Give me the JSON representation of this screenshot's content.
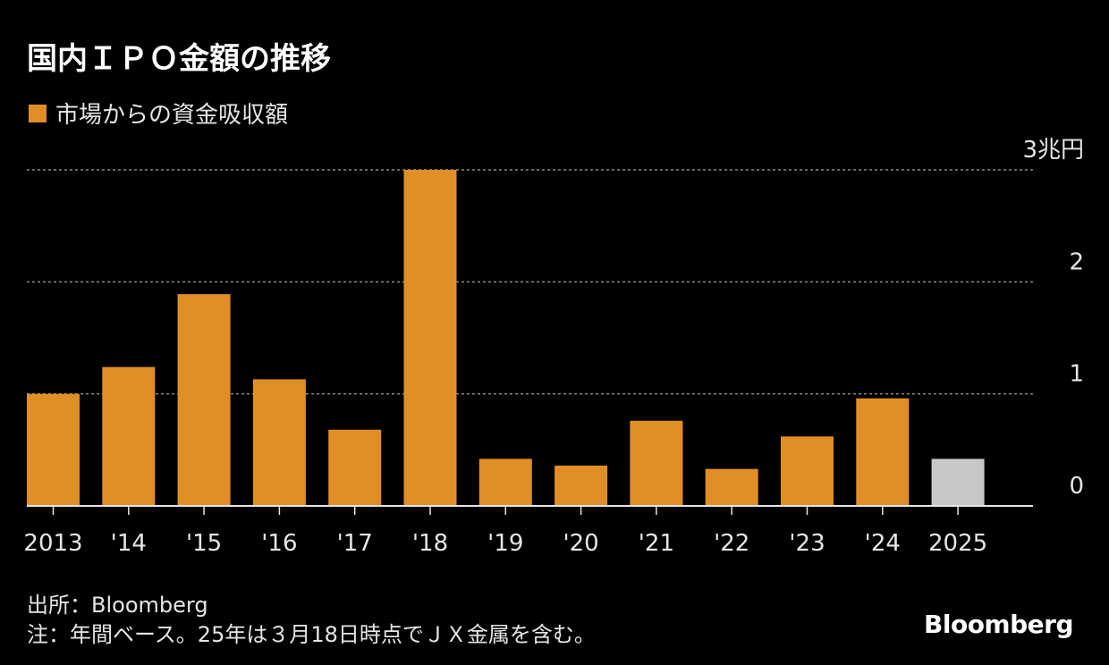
{
  "title": "国内ＩＰＯ金額の推移",
  "legend": {
    "label": "市場からの資金吸収額"
  },
  "source": "出所：Bloomberg",
  "note": "注：年間ベース。25年は３月18日時点でＪＸ金属を含む。",
  "brand": "Bloomberg",
  "colors": {
    "background": "#000000",
    "bar": "#e08f26",
    "bar_highlight": "#c8c8c8",
    "grid": "#8a8a8a",
    "text": "#e6e6e6"
  },
  "chart_data": {
    "type": "bar",
    "categories": [
      "2013",
      "'14",
      "'15",
      "'16",
      "'17",
      "'18",
      "'19",
      "'20",
      "'21",
      "'22",
      "'23",
      "'24",
      "2025"
    ],
    "series": [
      {
        "name": "市場からの資金吸収額",
        "values": [
          1.0,
          1.24,
          1.89,
          1.13,
          0.68,
          3.0,
          0.42,
          0.36,
          0.76,
          0.33,
          0.62,
          0.96,
          0.42
        ]
      }
    ],
    "highlight_category": "2025",
    "ylim": [
      0,
      3
    ],
    "yticks": [
      0,
      1,
      2,
      3
    ],
    "ytick_labels": [
      "0",
      "1",
      "2",
      "3兆円"
    ],
    "grid": true,
    "grid_style": "dotted",
    "legend_position": "top-left",
    "xlabel": "",
    "ylabel": ""
  }
}
